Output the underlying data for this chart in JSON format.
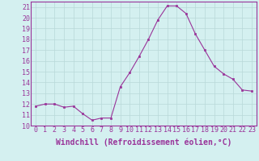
{
  "x": [
    0,
    1,
    2,
    3,
    4,
    5,
    6,
    7,
    8,
    9,
    10,
    11,
    12,
    13,
    14,
    15,
    16,
    17,
    18,
    19,
    20,
    21,
    22,
    23
  ],
  "y": [
    11.8,
    12.0,
    12.0,
    11.7,
    11.8,
    11.1,
    10.5,
    10.7,
    10.7,
    13.6,
    14.9,
    16.4,
    18.0,
    19.8,
    21.1,
    21.1,
    20.4,
    18.5,
    17.0,
    15.5,
    14.8,
    14.3,
    13.3,
    13.2
  ],
  "line_color": "#993399",
  "marker": "s",
  "marker_size": 2,
  "xlabel": "Windchill (Refroidissement éolien,°C)",
  "xlabel_color": "#993399",
  "ylabel_ticks": [
    10,
    11,
    12,
    13,
    14,
    15,
    16,
    17,
    18,
    19,
    20,
    21
  ],
  "xlim": [
    -0.5,
    23.5
  ],
  "ylim": [
    10,
    21.5
  ],
  "bg_color": "#d4f0f0",
  "grid_color": "#b8d8d8",
  "tick_fontsize": 6,
  "xlabel_fontsize": 7
}
